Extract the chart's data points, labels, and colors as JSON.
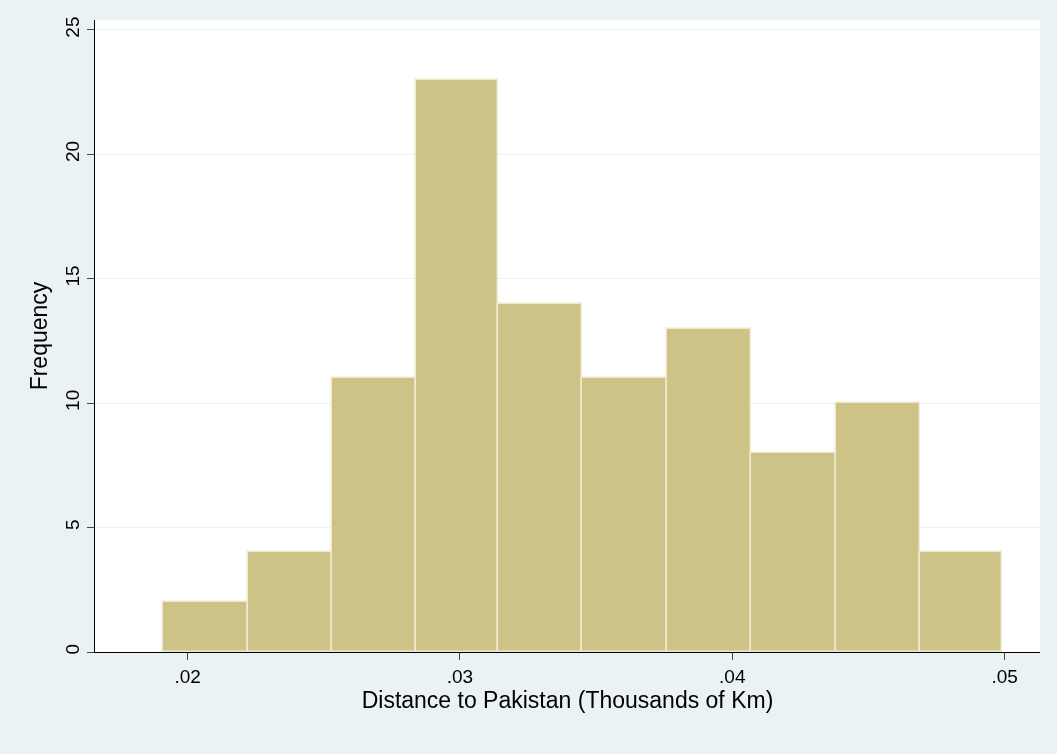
{
  "chart_data": {
    "type": "histogram",
    "xlabel": "Distance to Pakistan (Thousands of Km)",
    "ylabel": "Frequency",
    "bins": [
      0.0191,
      0.0222,
      0.0253,
      0.0284,
      0.0314,
      0.0345,
      0.0376,
      0.0407,
      0.0438,
      0.0469,
      0.0499
    ],
    "values": [
      2,
      4,
      11,
      23,
      14,
      11,
      13,
      8,
      10,
      4
    ],
    "color": "#cdc386",
    "xlim": [
      0.0166,
      0.0513
    ],
    "xticks": [
      {
        "value": 0.02,
        "label": ".02"
      },
      {
        "value": 0.03,
        "label": ".03"
      },
      {
        "value": 0.04,
        "label": ".04"
      },
      {
        "value": 0.05,
        "label": ".05"
      }
    ],
    "ylim": [
      0,
      25.4
    ],
    "yticks": [
      0,
      5,
      10,
      15,
      20,
      25
    ],
    "grid": "y"
  }
}
